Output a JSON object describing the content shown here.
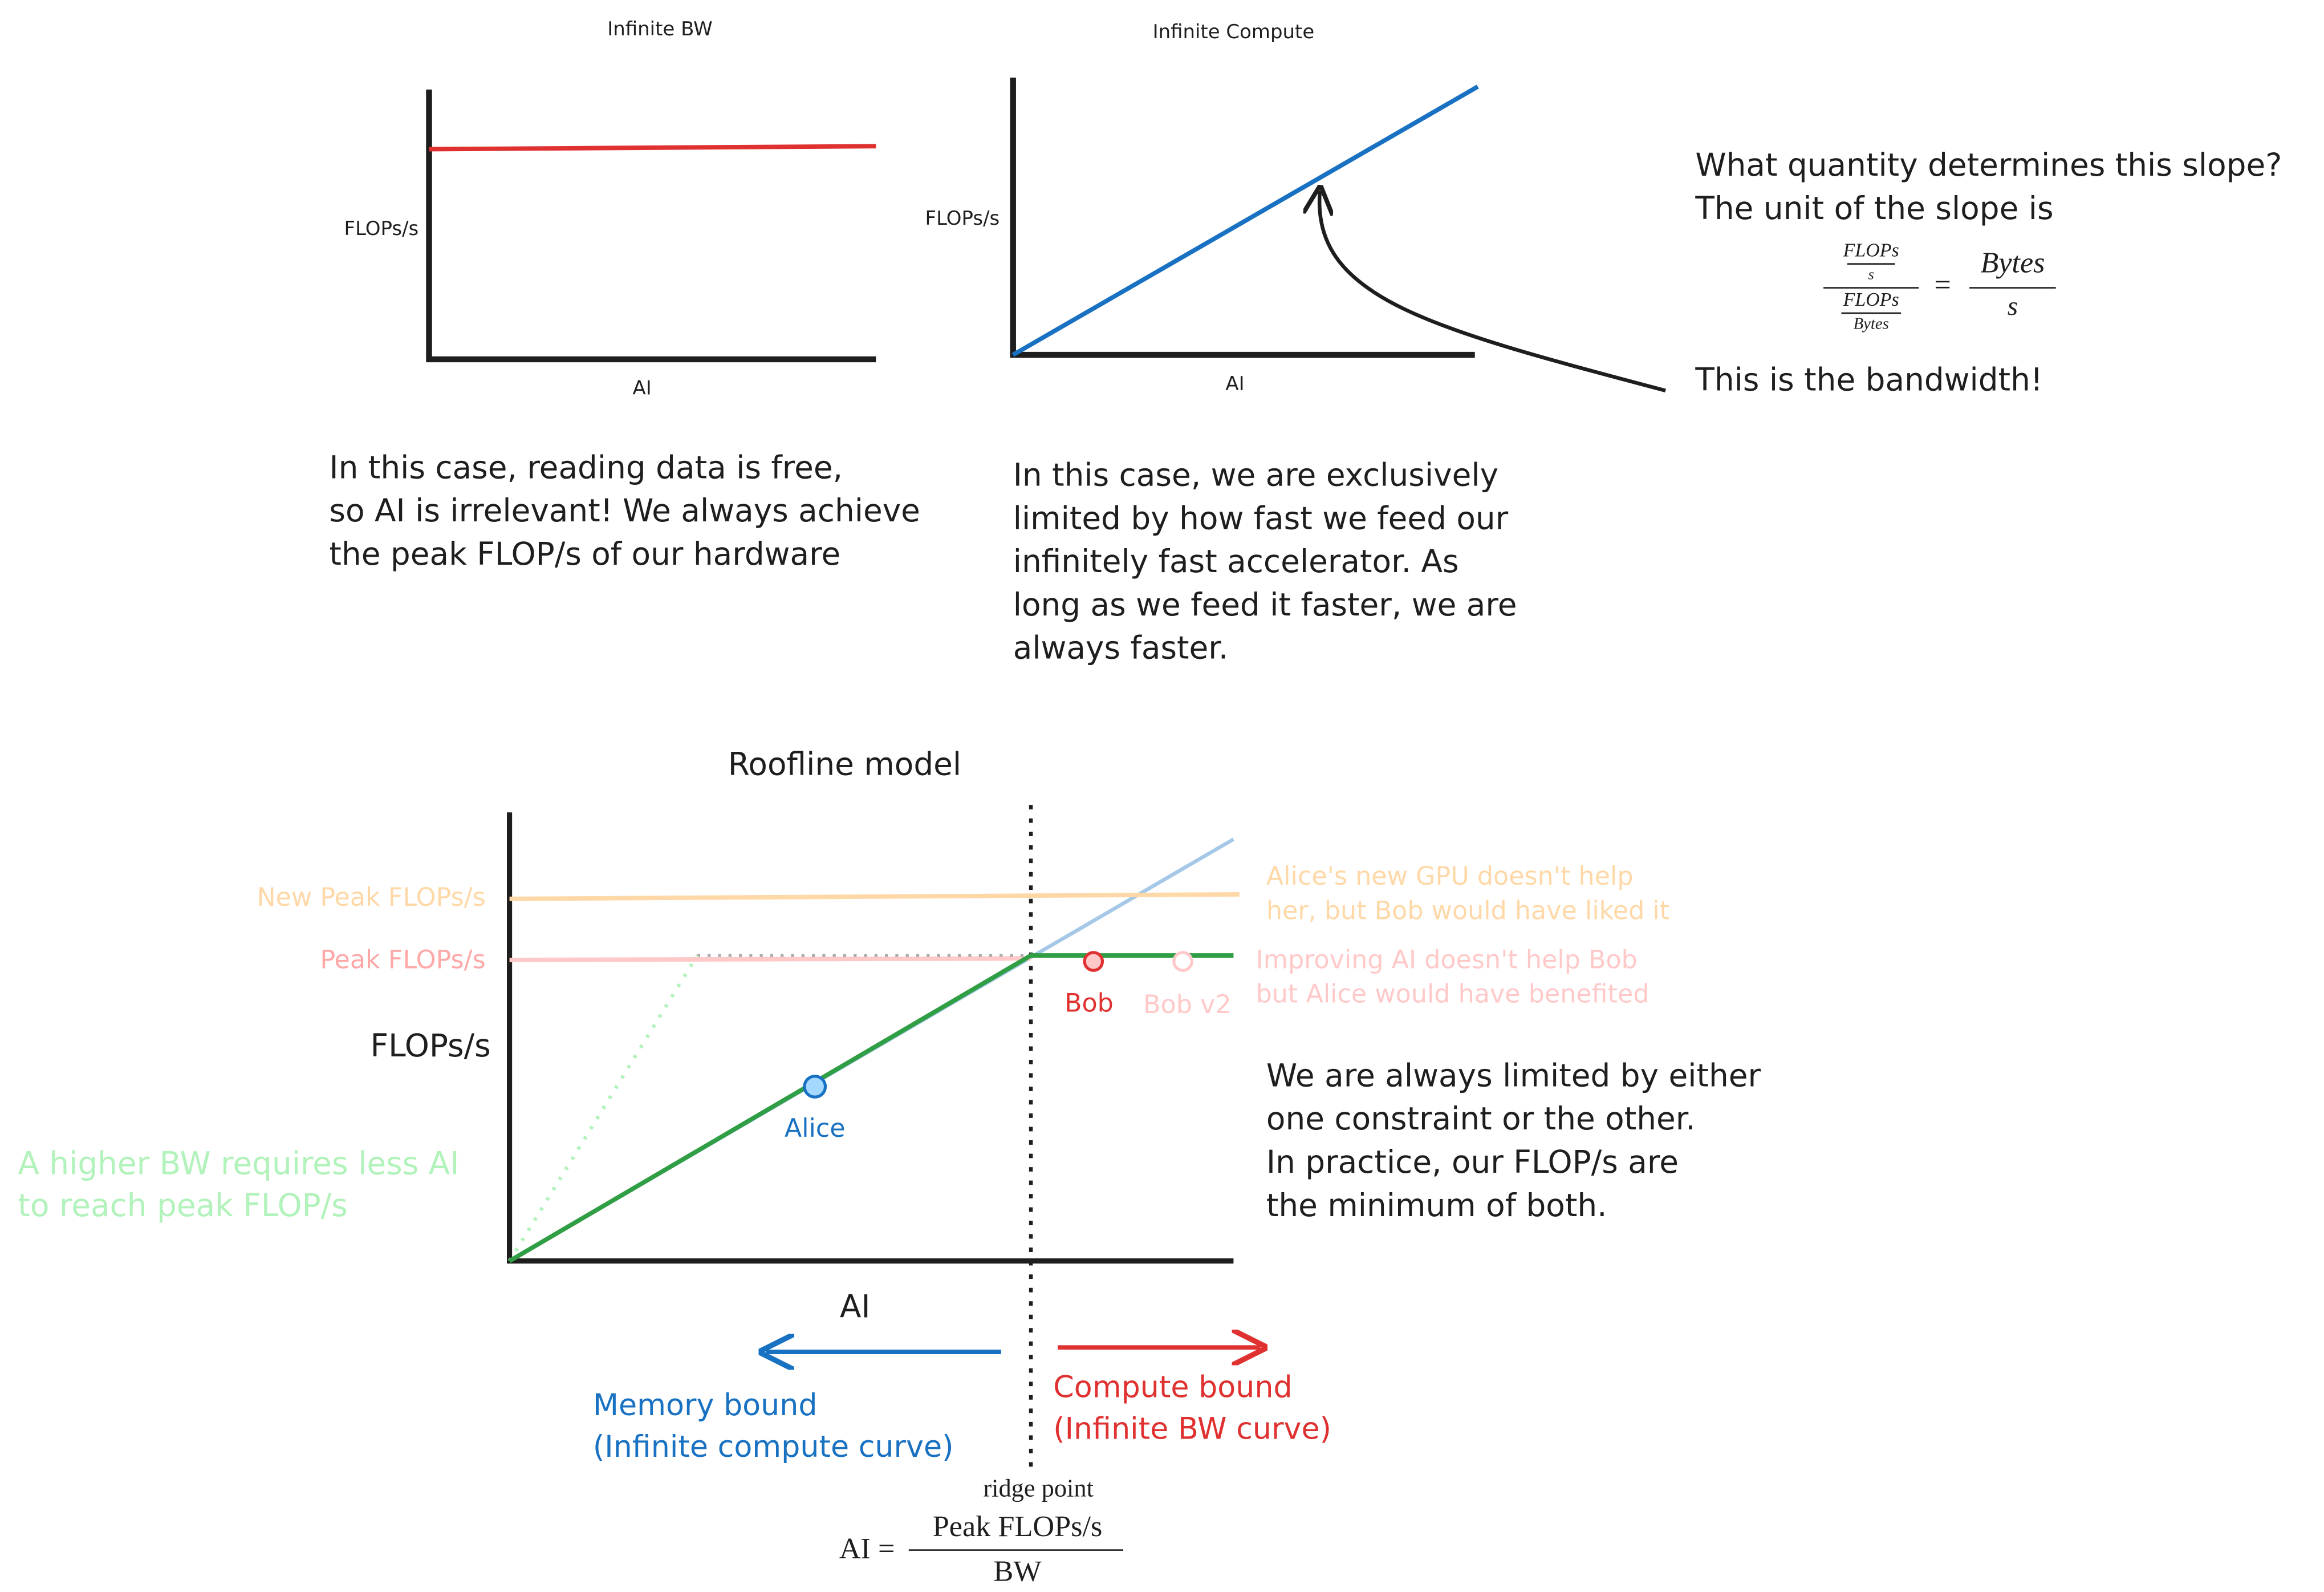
{
  "infinite_bw": {
    "title": "Infinite BW",
    "y_label": "FLOPs/s",
    "x_label": "AI",
    "caption": [
      "In this case, reading data is free,",
      "so AI is irrelevant! We always achieve",
      "the peak FLOP/s of our hardware"
    ]
  },
  "infinite_compute": {
    "title": "Infinite Compute",
    "y_label": "FLOPs/s",
    "x_label": "AI",
    "caption": [
      "In this case, we are exclusively",
      "limited by how fast we feed our",
      "infinitely fast accelerator. As",
      "long as we feed it faster, we are",
      "always faster."
    ]
  },
  "slope_note": {
    "question": "What quantity determines this slope?",
    "unit_text": "The unit of the slope is",
    "formula": {
      "num_num": "FLOPs",
      "num_den": "s",
      "den_num": "FLOPs",
      "den_den": "Bytes",
      "equals": "=",
      "rhs_num": "Bytes",
      "rhs_den": "s"
    },
    "answer": "This is the bandwidth!"
  },
  "roofline": {
    "title": "Roofline model",
    "y_label": "FLOPs/s",
    "x_label": "AI",
    "new_peak_label": "New Peak FLOPs/s",
    "peak_label": "Peak FLOPs/s",
    "new_gpu_note": [
      "Alice's new GPU doesn't help",
      "her, but Bob would have liked it"
    ],
    "improve_ai_note": [
      "Improving AI doesn't help Bob",
      "but Alice would have benefited"
    ],
    "points": {
      "bob": "Bob",
      "bob_v2": "Bob v2",
      "alice": "Alice"
    },
    "bw_note": [
      "A higher BW requires less AI",
      "to reach peak FLOP/s"
    ],
    "min_note": [
      "We are always limited by either",
      "one constraint or the other.",
      "In practice, our FLOP/s are",
      "the minimum of both."
    ],
    "memory_bound": [
      "Memory bound",
      "(Infinite compute curve)"
    ],
    "compute_bound": [
      "Compute bound",
      "(Infinite BW curve)"
    ],
    "ridge_label": "ridge point",
    "ridge_formula": {
      "lhs": "AI =",
      "numerator": "Peak FLOPs/s",
      "denominator": "BW"
    }
  }
}
